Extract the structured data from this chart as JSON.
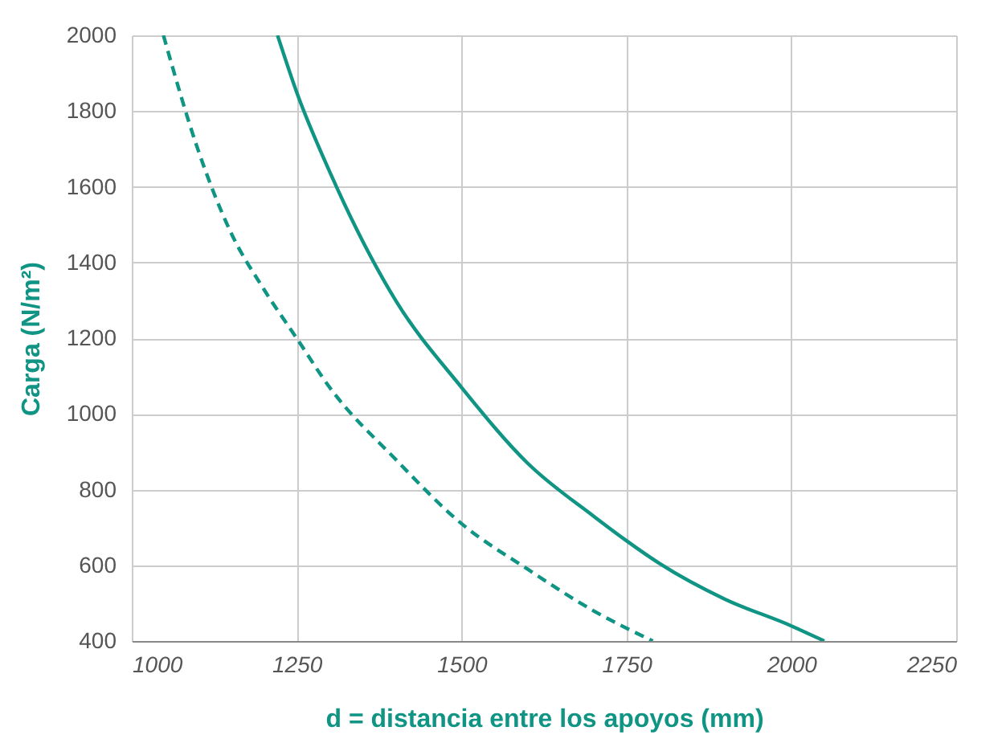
{
  "chart_data": {
    "type": "line",
    "xlabel": "d = distancia entre los apoyos (mm)",
    "ylabel": "Carga (N/m²)",
    "xlim": [
      1000,
      2250
    ],
    "xticks": [
      1000,
      1250,
      1500,
      1750,
      2000,
      2250
    ],
    "ylim": [
      400,
      2000
    ],
    "yticks": [
      400,
      600,
      800,
      1000,
      1200,
      1400,
      1600,
      1800,
      2000
    ],
    "grid": true,
    "series": [
      {
        "color": "#109484",
        "line_style": "solid",
        "x": [
          1221,
          1250,
          1300,
          1400,
          1500,
          1600,
          1700,
          1750,
          1800,
          1900,
          2000,
          2050
        ],
        "values": [
          2000,
          1850,
          1640,
          1300,
          1070,
          870,
          730,
          665,
          605,
          510,
          440,
          400
        ]
      },
      {
        "color": "#109484",
        "line_style": "dashed",
        "x": [
          1048,
          1100,
          1150,
          1200,
          1250,
          1300,
          1400,
          1500,
          1600,
          1700,
          1790
        ],
        "values": [
          2000,
          1700,
          1480,
          1330,
          1200,
          1070,
          880,
          710,
          590,
          480,
          400
        ]
      }
    ]
  }
}
